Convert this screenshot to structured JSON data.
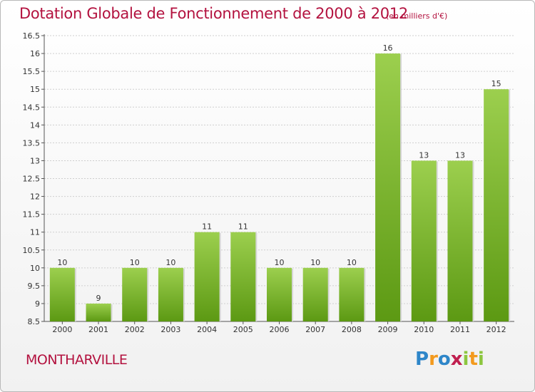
{
  "header": {
    "title": "Dotation Globale de Fonctionnement de 2000 à 2012",
    "unit": "(en milliers d'€)"
  },
  "footer": {
    "commune": "MONTHARVILLE",
    "logo": [
      "P",
      "r",
      "o",
      "x",
      "i",
      "t",
      "i"
    ]
  },
  "colors": {
    "bar": "#8cc63f",
    "bar_dark": "#5e9a14",
    "title": "#b3123f",
    "grid": "#cccccc"
  },
  "chart_data": {
    "type": "bar",
    "title": "Dotation Globale de Fonctionnement de 2000 à 2012",
    "subtitle": "(en milliers d'€)",
    "categories": [
      "2000",
      "2001",
      "2002",
      "2003",
      "2004",
      "2005",
      "2006",
      "2007",
      "2008",
      "2009",
      "2010",
      "2011",
      "2012"
    ],
    "values": [
      10,
      9,
      10,
      10,
      11,
      11,
      10,
      10,
      10,
      16,
      13,
      13,
      15
    ],
    "value_labels": [
      "10",
      "9",
      "10",
      "10",
      "11",
      "11",
      "10",
      "10",
      "10",
      "16",
      "13",
      "13",
      "15"
    ],
    "ylim": [
      8.5,
      16.5
    ],
    "yticks": [
      8.5,
      9,
      9.5,
      10,
      10.5,
      11,
      11.5,
      12,
      12.5,
      13,
      13.5,
      14,
      14.5,
      15,
      15.5,
      16,
      16.5
    ],
    "ytick_labels": [
      "8.5",
      "9",
      "9.5",
      "10",
      "10.5",
      "11",
      "11.5",
      "12",
      "12.5",
      "13",
      "13.5",
      "14",
      "14.5",
      "15",
      "15.5",
      "16",
      "16.5"
    ],
    "grid": true,
    "legend": "none"
  }
}
